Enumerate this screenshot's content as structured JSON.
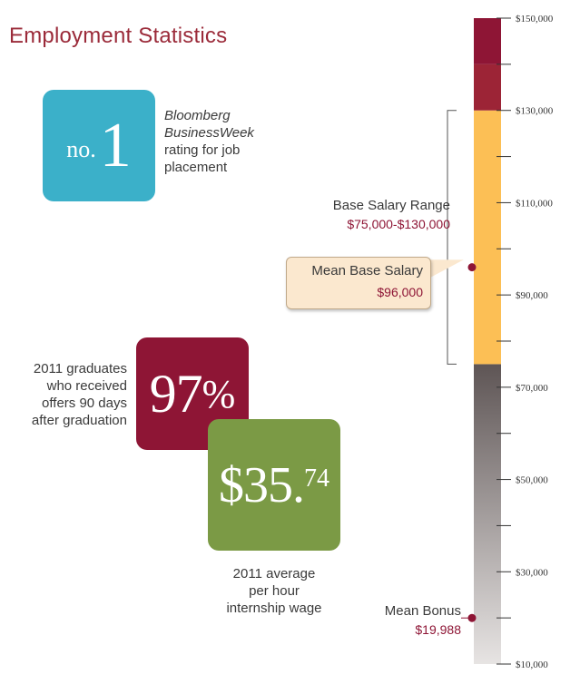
{
  "title": "Employment Statistics",
  "rank": {
    "prefix": "no.",
    "number": "1",
    "source": "Bloomberg",
    "source2": "BusinessWeek",
    "line1": "rating for job",
    "line2": "placement",
    "color": "#3bb0c9"
  },
  "offers": {
    "value": "97",
    "unit": "%",
    "line1": "2011 graduates",
    "line2": "who received",
    "line3": "offers 90 days",
    "line4": "after graduation",
    "color": "#8e1535"
  },
  "wage": {
    "dollars": "$35.",
    "cents": "74",
    "line1": "2011 average",
    "line2": "per hour",
    "line3": "internship wage",
    "color": "#7b9a45"
  },
  "salary_range": {
    "label": "Base Salary Range",
    "value": "$75,000-$130,000"
  },
  "mean_salary": {
    "label": "Mean Base Salary",
    "value": "$96,000"
  },
  "mean_bonus": {
    "label": "Mean Bonus",
    "value": "$19,988"
  },
  "chart_data": {
    "type": "bar",
    "orientation": "vertical-scale",
    "ylim": [
      10000,
      150000
    ],
    "y_ticks": [
      10000,
      30000,
      50000,
      70000,
      90000,
      110000,
      130000,
      150000
    ],
    "y_tick_labels": [
      "$10,000",
      "$30,000",
      "$50,000",
      "$70,000",
      "$90,000",
      "$110,000",
      "$130,000",
      "$150,000"
    ],
    "segments": [
      {
        "from": 10000,
        "to": 75000,
        "style": "gradient",
        "color_bottom": "#e7e4e3",
        "color_top": "#5e5555"
      },
      {
        "from": 75000,
        "to": 130000,
        "style": "solid",
        "color": "#fcbf55"
      },
      {
        "from": 130000,
        "to": 140000,
        "style": "solid",
        "color": "#9c2436"
      },
      {
        "from": 140000,
        "to": 150000,
        "style": "solid",
        "color": "#8e1535"
      }
    ],
    "range": {
      "from": 75000,
      "to": 130000
    },
    "markers": [
      {
        "value": 96000
      },
      {
        "value": 19988
      }
    ]
  }
}
